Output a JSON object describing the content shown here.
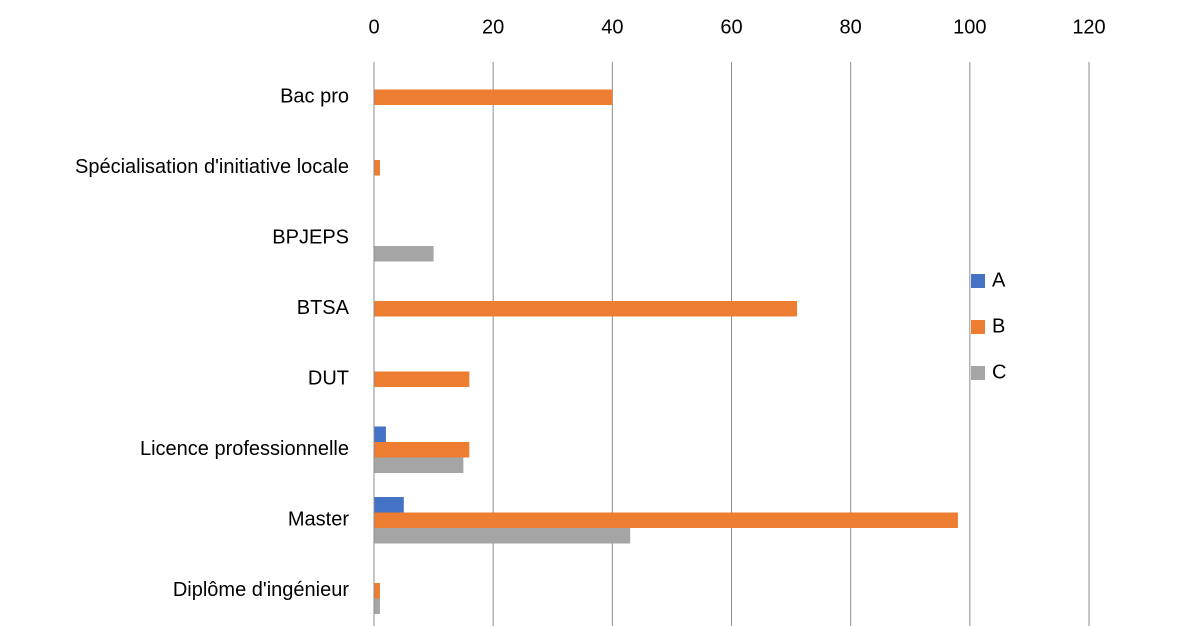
{
  "chart_data": {
    "type": "bar",
    "orientation": "horizontal",
    "categories": [
      "Bac pro",
      "Spécialisation d'initiative locale",
      "BPJEPS",
      "BTSA",
      "DUT",
      "Licence professionnelle",
      "Master",
      "Diplôme d'ingénieur"
    ],
    "series": [
      {
        "name": "A",
        "color": "#4472c4",
        "values": [
          0,
          0,
          0,
          0,
          0,
          2,
          5,
          0
        ]
      },
      {
        "name": "B",
        "color": "#ed7d31",
        "values": [
          40,
          1,
          0,
          71,
          16,
          16,
          98,
          1
        ]
      },
      {
        "name": "C",
        "color": "#a5a5a5",
        "values": [
          0,
          0,
          10,
          0,
          0,
          15,
          43,
          1
        ]
      }
    ],
    "xlim": [
      0,
      120
    ],
    "xticks": [
      0,
      20,
      40,
      60,
      80,
      100,
      120
    ],
    "grid": true,
    "legend": "right"
  }
}
